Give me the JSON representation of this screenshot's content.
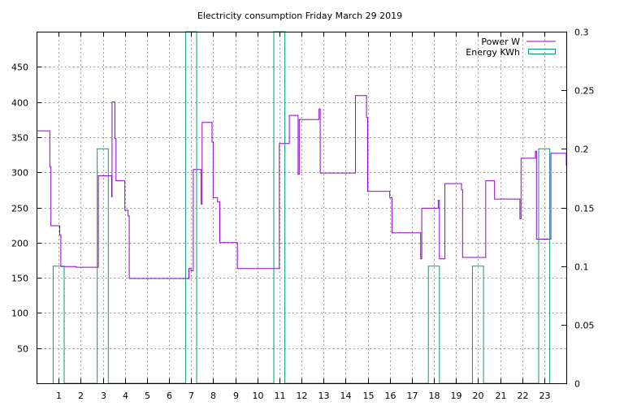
{
  "chart_data": {
    "type": "line",
    "title": "Electricity consumption Friday March 29 2019",
    "xlim": [
      0,
      24
    ],
    "ylim": [
      0,
      500
    ],
    "y2lim": [
      0,
      0.3
    ],
    "x_ticks": [
      1,
      2,
      3,
      4,
      5,
      6,
      7,
      8,
      9,
      10,
      11,
      12,
      13,
      14,
      15,
      16,
      17,
      18,
      19,
      20,
      21,
      22,
      23
    ],
    "y_ticks": [
      50,
      100,
      150,
      200,
      250,
      300,
      350,
      400,
      450
    ],
    "y2_ticks": [
      "0",
      "0.05",
      "0.1",
      "0.15",
      "0.2",
      "0.25",
      "0.3"
    ],
    "y2_tick_values": [
      0,
      0.05,
      0.1,
      0.15,
      0.2,
      0.25,
      0.3
    ],
    "grid": true,
    "legend_position": "top-right",
    "series": [
      {
        "name": "Power W",
        "axis": "y",
        "color": "#9400d3",
        "style": "step",
        "points": [
          [
            0,
            359
          ],
          [
            0.6,
            359
          ],
          [
            0.6,
            308
          ],
          [
            0.65,
            308
          ],
          [
            0.65,
            224
          ],
          [
            1.05,
            224
          ],
          [
            1.05,
            211
          ],
          [
            1.1,
            211
          ],
          [
            1.1,
            166
          ],
          [
            1.8,
            166
          ],
          [
            1.8,
            165
          ],
          [
            2.8,
            165
          ],
          [
            2.8,
            295
          ],
          [
            3.4,
            295
          ],
          [
            3.4,
            265
          ],
          [
            3.42,
            265
          ],
          [
            3.42,
            400
          ],
          [
            3.55,
            400
          ],
          [
            3.55,
            348
          ],
          [
            3.6,
            348
          ],
          [
            3.6,
            288
          ],
          [
            4.0,
            288
          ],
          [
            4.0,
            246
          ],
          [
            4.15,
            246
          ],
          [
            4.15,
            238
          ],
          [
            4.2,
            238
          ],
          [
            4.2,
            149
          ],
          [
            6.9,
            149
          ],
          [
            6.9,
            163
          ],
          [
            7.0,
            163
          ],
          [
            7.0,
            160
          ],
          [
            7.1,
            160
          ],
          [
            7.1,
            304
          ],
          [
            7.45,
            304
          ],
          [
            7.45,
            255
          ],
          [
            7.5,
            255
          ],
          [
            7.5,
            371
          ],
          [
            7.95,
            371
          ],
          [
            7.95,
            343
          ],
          [
            8.0,
            343
          ],
          [
            8.0,
            264
          ],
          [
            8.2,
            264
          ],
          [
            8.2,
            258
          ],
          [
            8.3,
            258
          ],
          [
            8.3,
            200
          ],
          [
            9.1,
            200
          ],
          [
            9.1,
            163
          ],
          [
            11.0,
            163
          ],
          [
            11.0,
            341
          ],
          [
            11.45,
            341
          ],
          [
            11.45,
            381
          ],
          [
            11.85,
            381
          ],
          [
            11.85,
            297
          ],
          [
            11.9,
            297
          ],
          [
            11.9,
            375
          ],
          [
            12.8,
            375
          ],
          [
            12.8,
            390
          ],
          [
            12.85,
            390
          ],
          [
            12.85,
            299
          ],
          [
            14.45,
            299
          ],
          [
            14.45,
            409
          ],
          [
            14.95,
            409
          ],
          [
            14.95,
            378
          ],
          [
            15.0,
            378
          ],
          [
            15.0,
            273
          ],
          [
            16.0,
            273
          ],
          [
            16.0,
            264
          ],
          [
            16.1,
            264
          ],
          [
            16.1,
            214
          ],
          [
            17.4,
            214
          ],
          [
            17.4,
            177
          ],
          [
            17.45,
            177
          ],
          [
            17.45,
            249
          ],
          [
            18.2,
            249
          ],
          [
            18.2,
            260
          ],
          [
            18.25,
            260
          ],
          [
            18.25,
            177
          ],
          [
            18.5,
            177
          ],
          [
            18.5,
            284
          ],
          [
            19.25,
            284
          ],
          [
            19.25,
            275
          ],
          [
            19.3,
            275
          ],
          [
            19.3,
            179
          ],
          [
            20.35,
            179
          ],
          [
            20.35,
            288
          ],
          [
            20.75,
            288
          ],
          [
            20.75,
            262
          ],
          [
            21.9,
            262
          ],
          [
            21.9,
            234
          ],
          [
            21.95,
            234
          ],
          [
            21.95,
            320
          ],
          [
            22.6,
            320
          ],
          [
            22.6,
            330
          ],
          [
            22.65,
            330
          ],
          [
            22.65,
            205
          ],
          [
            23.3,
            205
          ],
          [
            23.3,
            327
          ],
          [
            24.0,
            327
          ],
          [
            24.0,
            309
          ]
        ]
      },
      {
        "name": "Energy KWh",
        "axis": "y2",
        "color": "#009e73",
        "style": "step",
        "points": [
          [
            0.75,
            0
          ],
          [
            0.75,
            0.1
          ],
          [
            1.25,
            0.1
          ],
          [
            1.25,
            0
          ],
          [
            2.75,
            0
          ],
          [
            2.75,
            0.2
          ],
          [
            3.25,
            0.2
          ],
          [
            3.25,
            0
          ],
          [
            6.75,
            0
          ],
          [
            6.75,
            0.3
          ],
          [
            7.25,
            0.3
          ],
          [
            7.25,
            0
          ],
          [
            10.75,
            0
          ],
          [
            10.75,
            0.3
          ],
          [
            11.25,
            0.3
          ],
          [
            11.25,
            0
          ],
          [
            17.75,
            0
          ],
          [
            17.75,
            0.1
          ],
          [
            18.25,
            0.1
          ],
          [
            18.25,
            0
          ],
          [
            19.75,
            0
          ],
          [
            19.75,
            0.1
          ],
          [
            20.25,
            0.1
          ],
          [
            20.25,
            0
          ],
          [
            22.75,
            0
          ],
          [
            22.75,
            0.2
          ],
          [
            23.25,
            0.2
          ],
          [
            23.25,
            0
          ]
        ]
      }
    ]
  }
}
